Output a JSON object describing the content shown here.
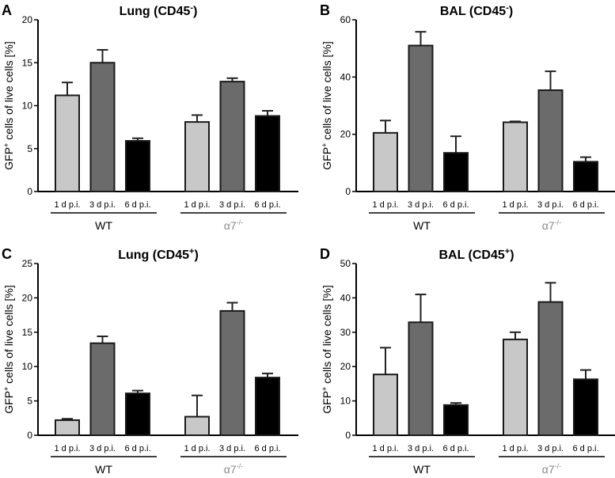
{
  "colors": {
    "d1": "#c8c8c8",
    "d3": "#6b6b6b",
    "d6": "#000000",
    "alpha_label": "#8a8a8a"
  },
  "chart_data": [
    {
      "type": "bar",
      "panel": "A",
      "title": "Lung (CD45",
      "title_sup": "-",
      "ylabel": "GFP+ cells of live cells [%]",
      "ylabel_main": "GFP",
      "ylabel_sup": "+",
      "ylabel_rest": " cells of live cells [%]",
      "ylim": [
        0,
        20
      ],
      "yticks": [
        0,
        5,
        10,
        15,
        20
      ],
      "categories": [
        "1 d p.i.",
        "3 d p.i.",
        "6 d p.i."
      ],
      "groups": [
        {
          "name": "WT",
          "values": [
            11.2,
            15.0,
            5.9
          ],
          "errors": [
            1.5,
            1.5,
            0.3
          ]
        },
        {
          "name": "α7",
          "name_sup": "-/-",
          "values": [
            8.1,
            12.8,
            8.8
          ],
          "errors": [
            0.8,
            0.4,
            0.6
          ]
        }
      ]
    },
    {
      "type": "bar",
      "panel": "B",
      "title": "BAL (CD45",
      "title_sup": "-",
      "ylabel": "GFP+ cells of live cells [%]",
      "ylabel_main": "GFP",
      "ylabel_sup": "+",
      "ylabel_rest": " cells of live cells [%]",
      "ylim": [
        0,
        60
      ],
      "yticks": [
        0,
        20,
        40,
        60
      ],
      "categories": [
        "1 d p.i.",
        "3 d p.i.",
        "6 d p.i."
      ],
      "groups": [
        {
          "name": "WT",
          "values": [
            20.5,
            51.0,
            13.5
          ],
          "errors": [
            4.3,
            4.8,
            5.8
          ]
        },
        {
          "name": "α7",
          "name_sup": "-/-",
          "values": [
            24.2,
            35.4,
            10.4
          ],
          "errors": [
            0.3,
            6.6,
            1.6
          ]
        }
      ]
    },
    {
      "type": "bar",
      "panel": "C",
      "title": "Lung (CD45",
      "title_sup": "+",
      "ylabel": "GFP+ cells of live cells [%]",
      "ylabel_main": "GFP",
      "ylabel_sup": "+",
      "ylabel_rest": " cells of live cells [%]",
      "ylim": [
        0,
        25
      ],
      "yticks": [
        0,
        5,
        10,
        15,
        20,
        25
      ],
      "categories": [
        "1 d p.i.",
        "3 d p.i.",
        "6 d p.i."
      ],
      "groups": [
        {
          "name": "WT",
          "values": [
            2.2,
            13.4,
            6.1
          ],
          "errors": [
            0.2,
            1.0,
            0.4
          ]
        },
        {
          "name": "α7",
          "name_sup": "-/-",
          "values": [
            2.7,
            18.1,
            8.4
          ],
          "errors": [
            3.1,
            1.2,
            0.6
          ]
        }
      ]
    },
    {
      "type": "bar",
      "panel": "D",
      "title": "BAL (CD45",
      "title_sup": "+",
      "ylabel": "GFP+ cells of live cells [%]",
      "ylabel_main": "GFP",
      "ylabel_sup": "+",
      "ylabel_rest": " cells of live cells [%]",
      "ylim": [
        0,
        50
      ],
      "yticks": [
        0,
        10,
        20,
        30,
        40,
        50
      ],
      "categories": [
        "1 d p.i.",
        "3 d p.i.",
        "6 d p.i."
      ],
      "groups": [
        {
          "name": "WT",
          "values": [
            17.7,
            32.9,
            8.8
          ],
          "errors": [
            7.8,
            8.1,
            0.6
          ]
        },
        {
          "name": "α7",
          "name_sup": "-/-",
          "values": [
            27.9,
            38.8,
            16.3
          ],
          "errors": [
            2.1,
            5.6,
            2.7
          ]
        }
      ]
    }
  ]
}
